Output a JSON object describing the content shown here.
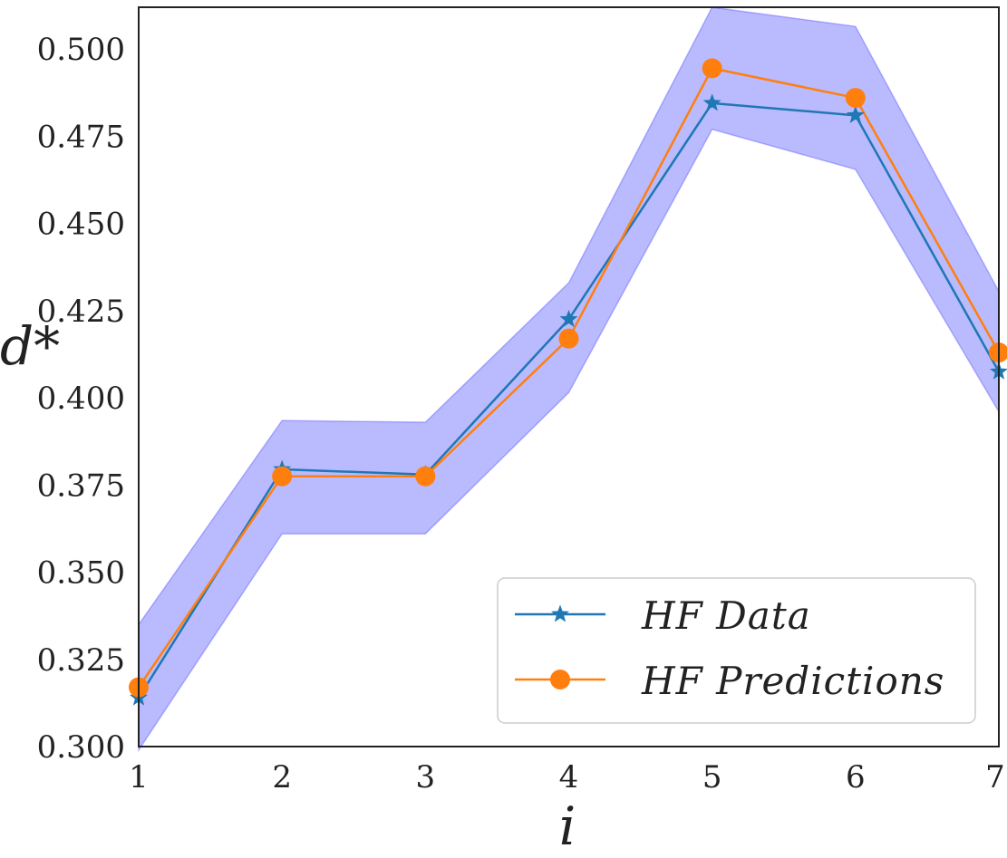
{
  "chart_data": {
    "type": "line",
    "xlabel": "i",
    "ylabel": "d*",
    "x": [
      1,
      2,
      3,
      4,
      5,
      6,
      7
    ],
    "xlim": [
      1,
      7
    ],
    "ylim": [
      0.3,
      0.512
    ],
    "xticks": [
      "1",
      "2",
      "3",
      "4",
      "5",
      "6",
      "7"
    ],
    "yticks": [
      "0.300",
      "0.325",
      "0.350",
      "0.375",
      "0.400",
      "0.425",
      "0.450",
      "0.475",
      "0.500"
    ],
    "ytick_values": [
      0.3,
      0.325,
      0.35,
      0.375,
      0.4,
      0.425,
      0.45,
      0.475,
      0.5
    ],
    "grid": false,
    "legend_position": "bottom-right",
    "series": [
      {
        "name": "HF Data",
        "marker": "star",
        "color": "#1f77b4",
        "values": [
          0.314,
          0.3795,
          0.378,
          0.4225,
          0.4845,
          0.481,
          0.4075
        ]
      },
      {
        "name": "HF Predictions",
        "marker": "circle",
        "color": "#ff7f0e",
        "values": [
          0.317,
          0.3775,
          0.3775,
          0.417,
          0.4945,
          0.486,
          0.413
        ]
      }
    ],
    "band": {
      "color": "#0000ff",
      "opacity": 0.27,
      "upper": [
        0.335,
        0.3935,
        0.393,
        0.433,
        0.512,
        0.5065,
        0.4305
      ],
      "lower": [
        0.299,
        0.361,
        0.361,
        0.4015,
        0.477,
        0.4655,
        0.396
      ]
    }
  }
}
